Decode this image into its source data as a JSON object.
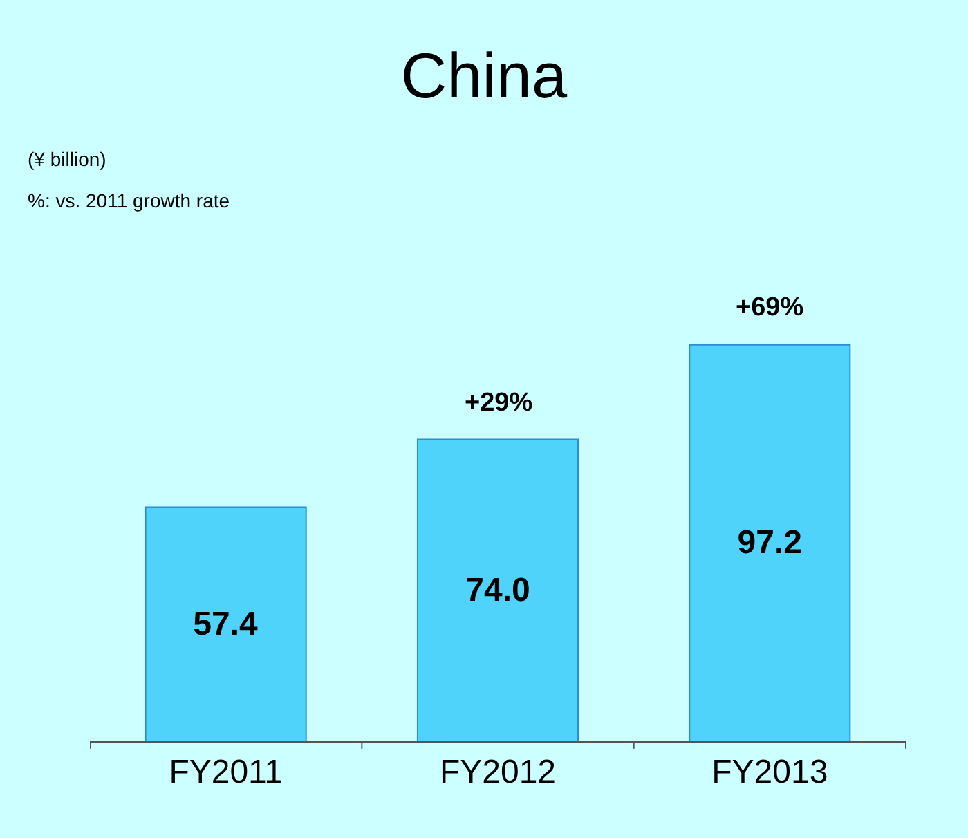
{
  "chart_data": {
    "type": "bar",
    "title": "China",
    "subtitle": "(¥ billion)",
    "categories": [
      "FY2011",
      "FY2012",
      "FY2013"
    ],
    "values": [
      57.4,
      74.0,
      97.2
    ],
    "value_labels": [
      "57.4",
      "74.0",
      "97.2"
    ],
    "color": "#4fd3fb",
    "annotations": [
      "%: vs. 2011 growth rate",
      {
        "text": "+29%",
        "x": "FY2012",
        "y": 74.0
      },
      {
        "text": "+69%",
        "x": "FY2013",
        "y": 97.2
      }
    ],
    "grid": false,
    "legend": false
  }
}
